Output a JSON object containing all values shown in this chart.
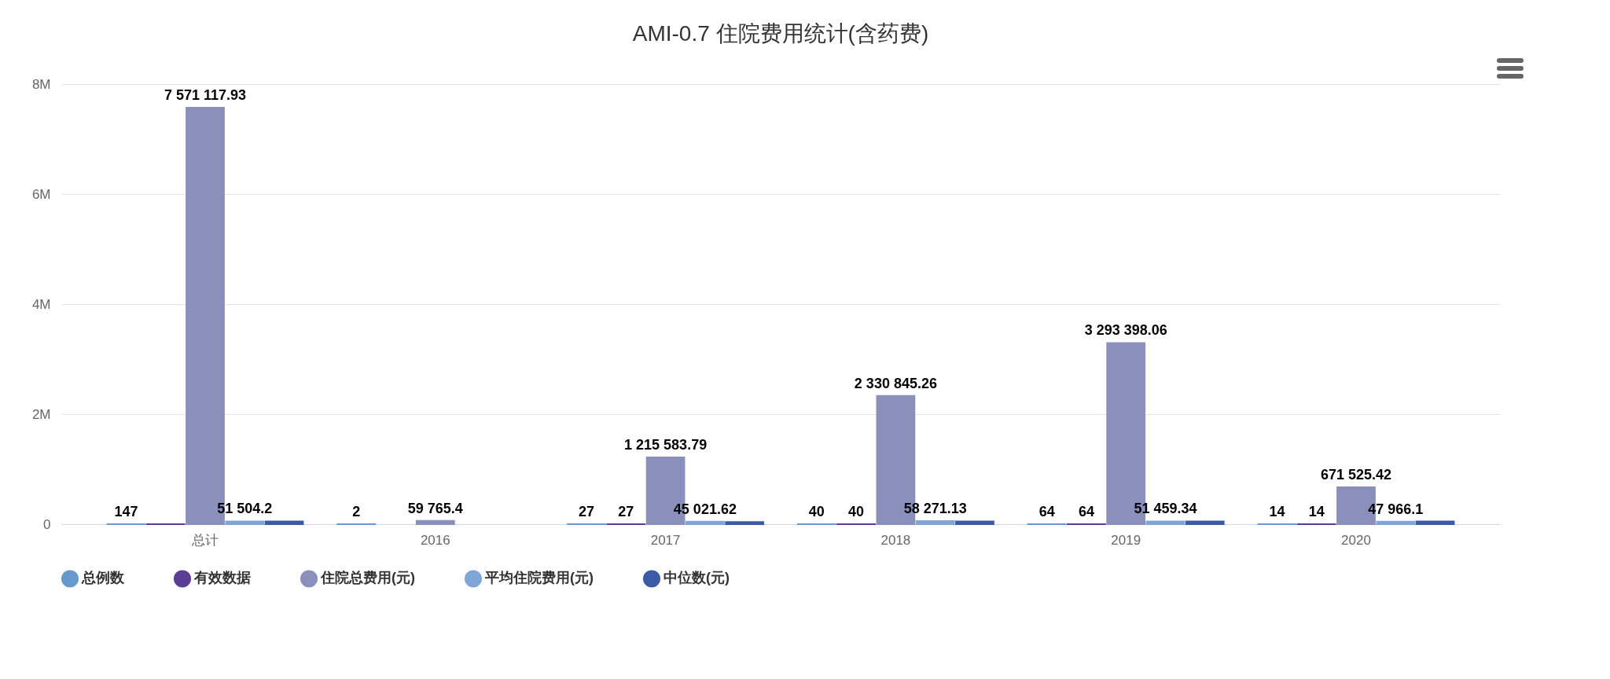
{
  "chart_data": {
    "type": "bar",
    "title": "AMI-0.7 住院费用统计(含药费)",
    "categories": [
      "总计",
      "2016",
      "2017",
      "2018",
      "2019",
      "2020"
    ],
    "series": [
      {
        "name": "总例数",
        "color": "#6699cc",
        "values": [
          147,
          2,
          27,
          40,
          64,
          14
        ],
        "value_labels": [
          "147",
          "2",
          "27",
          "40",
          "64",
          "14"
        ]
      },
      {
        "name": "有效数据",
        "color": "#5c3d96",
        "values": [
          147,
          null,
          27,
          40,
          64,
          14
        ],
        "value_labels": [
          null,
          null,
          "27",
          "40",
          "64",
          "14"
        ]
      },
      {
        "name": "住院总费用(元)",
        "color": "#8a8fbb",
        "values": [
          7571117.93,
          59765.4,
          1215583.79,
          2330845.26,
          3293398.06,
          671525.42
        ],
        "value_labels": [
          "7 571 117.93",
          "59 765.4",
          "1 215 583.79",
          "2 330 845.26",
          "3 293 398.06",
          "671 525.42"
        ]
      },
      {
        "name": "平均住院费用(元)",
        "color": "#7fa6d6",
        "values": [
          51504.2,
          null,
          45021.62,
          58271.13,
          51459.34,
          47966.1
        ],
        "value_labels": [
          "51 504.2",
          null,
          "45 021.62",
          "58 271.13",
          "51 459.34",
          "47 966.1"
        ]
      },
      {
        "name": "中位数(元)",
        "color": "#3b5aa8",
        "values": [
          50000,
          null,
          40000,
          50000,
          50000,
          50000
        ]
      }
    ],
    "ylim": [
      0,
      8000000
    ],
    "yticks": [
      {
        "value": 0,
        "label": "0"
      },
      {
        "value": 2000000,
        "label": "2M"
      },
      {
        "value": 4000000,
        "label": "4M"
      },
      {
        "value": 6000000,
        "label": "6M"
      },
      {
        "value": 8000000,
        "label": "8M"
      }
    ],
    "grid": "y",
    "legend": "bottom"
  }
}
